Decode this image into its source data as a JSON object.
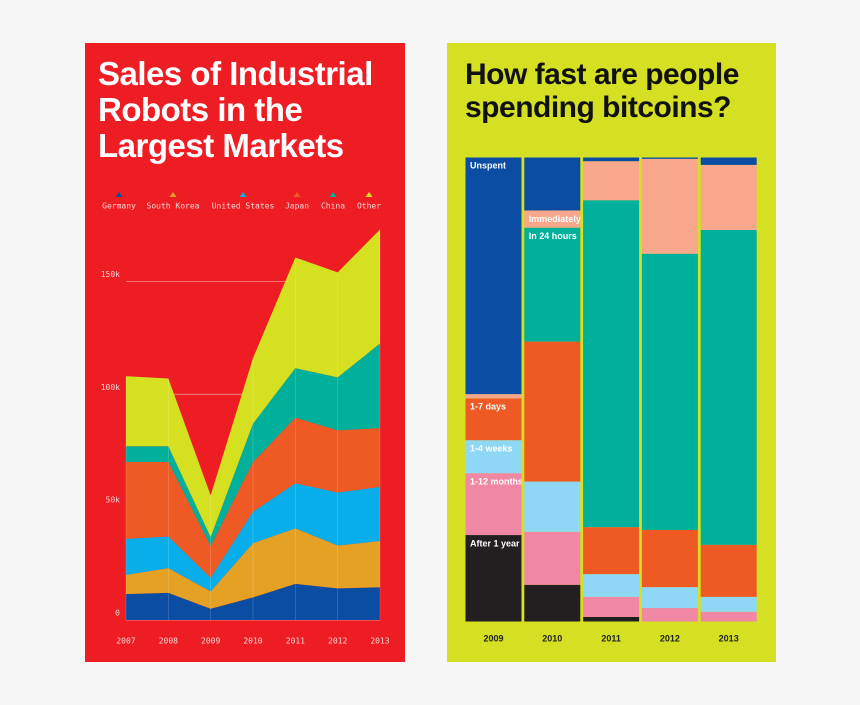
{
  "chart_data": [
    {
      "type": "area",
      "stacked": true,
      "title": "Sales of Industrial Robots in the Largest Markets",
      "categories": [
        "2007",
        "2008",
        "2009",
        "2010",
        "2011",
        "2012",
        "2013"
      ],
      "series": [
        {
          "name": "Germany",
          "color": "#0a4da2",
          "values": [
            11500,
            12000,
            5000,
            10000,
            16000,
            14000,
            14500
          ]
        },
        {
          "name": "South Korea",
          "color": "#e5a124",
          "values": [
            8500,
            11000,
            7700,
            24000,
            24600,
            19000,
            20500
          ]
        },
        {
          "name": "United States",
          "color": "#08aee9",
          "values": [
            16000,
            14000,
            6000,
            14000,
            20000,
            23500,
            24000
          ]
        },
        {
          "name": "Japan",
          "color": "#ef5a24",
          "values": [
            34000,
            33000,
            14000,
            22000,
            29000,
            27500,
            26000
          ]
        },
        {
          "name": "China",
          "color": "#00b09b",
          "values": [
            7000,
            7000,
            4000,
            17000,
            22000,
            23500,
            37500
          ]
        },
        {
          "name": "Other",
          "color": "#d5e021",
          "values": [
            31000,
            30000,
            18500,
            29000,
            49000,
            46500,
            50500
          ]
        }
      ],
      "ylim": [
        0,
        175000
      ],
      "yticks": [
        0,
        {
          "value": 50000,
          "label": "50k"
        },
        {
          "value": 100000,
          "label": "100k"
        },
        {
          "value": 150000,
          "label": "150k"
        }
      ],
      "grid": true
    },
    {
      "type": "bar",
      "stacked": true,
      "title": "How fast are people spending bitcoins?",
      "categories": [
        "2009",
        "2010",
        "2011",
        "2012",
        "2013"
      ],
      "series": [
        {
          "name": "After 1 year",
          "color": "#231f20",
          "values": [
            18.7,
            8.0,
            1.1,
            0,
            0
          ]
        },
        {
          "name": "1-12 months",
          "color": "#f087a5",
          "values": [
            13.3,
            11.4,
            4.3,
            3.0,
            2.2
          ]
        },
        {
          "name": "1-4 weeks",
          "color": "#8fd8f5",
          "values": [
            7.1,
            10.8,
            4.9,
            4.5,
            3.2
          ]
        },
        {
          "name": "1-7 days",
          "color": "#ef5a24",
          "values": [
            9.0,
            30.1,
            10.1,
            12.3,
            11.2
          ]
        },
        {
          "name": "In 24 hours",
          "color": "#00b09b",
          "values": [
            0,
            24.5,
            70.3,
            59.4,
            67.7
          ]
        },
        {
          "name": "Immediately",
          "color": "#f7a78b",
          "values": [
            0.9,
            3.7,
            8.4,
            20.4,
            14.0
          ]
        },
        {
          "name": "Unspent",
          "color": "#0a4da2",
          "values": [
            51.0,
            11.5,
            0.9,
            0.4,
            1.7
          ]
        }
      ]
    }
  ]
}
